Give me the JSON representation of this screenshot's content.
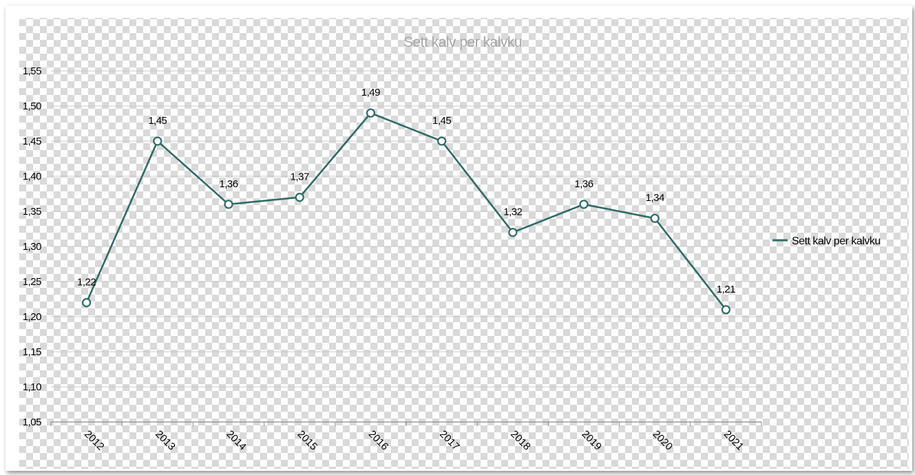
{
  "chart_data": {
    "type": "line",
    "title": "Sett kalv per kalvku",
    "xlabel": "",
    "ylabel": "",
    "categories": [
      "2012",
      "2013",
      "2014",
      "2015",
      "2016",
      "2017",
      "2018",
      "2019",
      "2020",
      "2021"
    ],
    "series": [
      {
        "name": "Sett kalv per kalvku",
        "values": [
          1.22,
          1.45,
          1.36,
          1.37,
          1.49,
          1.45,
          1.32,
          1.36,
          1.34,
          1.21
        ],
        "labels": [
          "1,22",
          "1,45",
          "1,36",
          "1,37",
          "1,49",
          "1,45",
          "1,32",
          "1,36",
          "1,34",
          "1,21"
        ],
        "color": "#2e6b66"
      }
    ],
    "ylim": [
      1.05,
      1.55
    ],
    "yticks": [
      1.05,
      1.1,
      1.15,
      1.2,
      1.25,
      1.3,
      1.35,
      1.4,
      1.45,
      1.5,
      1.55
    ],
    "ytick_labels": [
      "1,05",
      "1,10",
      "1,15",
      "1,20",
      "1,25",
      "1,30",
      "1,35",
      "1,40",
      "1,45",
      "1,50",
      "1,55"
    ],
    "grid": true,
    "legend": "right",
    "background": "transparent-checkerboard"
  }
}
